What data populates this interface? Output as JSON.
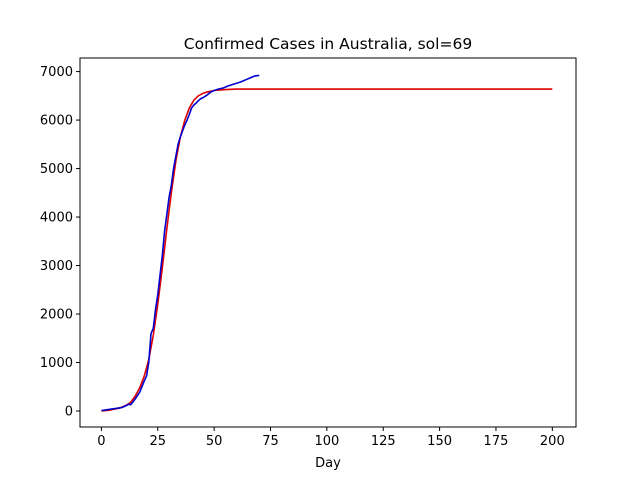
{
  "chart_data": {
    "type": "line",
    "title": "Confirmed Cases in Australia, sol=69",
    "xlabel": "Day",
    "ylabel": "",
    "xlim": [
      -9.5,
      210.5
    ],
    "ylim": [
      -330,
      7280
    ],
    "xticks": [
      0,
      25,
      50,
      75,
      100,
      125,
      150,
      175,
      200
    ],
    "yticks": [
      0,
      1000,
      2000,
      3000,
      4000,
      5000,
      6000,
      7000
    ],
    "grid": false,
    "series": [
      {
        "color": "#dd0000",
        "x": [
          0,
          4,
          8,
          11,
          13,
          15,
          17,
          19,
          21,
          23,
          25,
          27,
          29,
          31,
          33,
          35,
          37,
          39,
          41,
          43,
          45,
          47,
          50,
          55,
          60,
          80,
          100,
          125,
          150,
          175,
          200
        ],
        "y": [
          0,
          20,
          60,
          120,
          180,
          310,
          480,
          720,
          1060,
          1560,
          2200,
          2950,
          3750,
          4500,
          5150,
          5650,
          6000,
          6250,
          6410,
          6500,
          6550,
          6580,
          6610,
          6630,
          6640,
          6640,
          6640,
          6640,
          6640,
          6640,
          6640
        ]
      },
      {
        "color": "#0000cc",
        "x": [
          0,
          3,
          6,
          9,
          11,
          12,
          13,
          15,
          17,
          19,
          20,
          21,
          22,
          23,
          24,
          25,
          26,
          27,
          28,
          29,
          30,
          31,
          32,
          33,
          34,
          35,
          36,
          37,
          38,
          39,
          40,
          41,
          42,
          43,
          44,
          45,
          46,
          47,
          48,
          49,
          50,
          52,
          54,
          56,
          58,
          60,
          62,
          64,
          66,
          68,
          70
        ],
        "y": [
          10,
          30,
          50,
          70,
          110,
          140,
          130,
          250,
          390,
          620,
          720,
          1000,
          1600,
          1700,
          2100,
          2400,
          2800,
          3200,
          3700,
          4050,
          4400,
          4650,
          5000,
          5250,
          5500,
          5650,
          5780,
          5900,
          6000,
          6120,
          6250,
          6310,
          6350,
          6400,
          6440,
          6460,
          6490,
          6520,
          6560,
          6590,
          6610,
          6640,
          6660,
          6700,
          6730,
          6760,
          6790,
          6830,
          6870,
          6910,
          6920
        ]
      }
    ]
  }
}
